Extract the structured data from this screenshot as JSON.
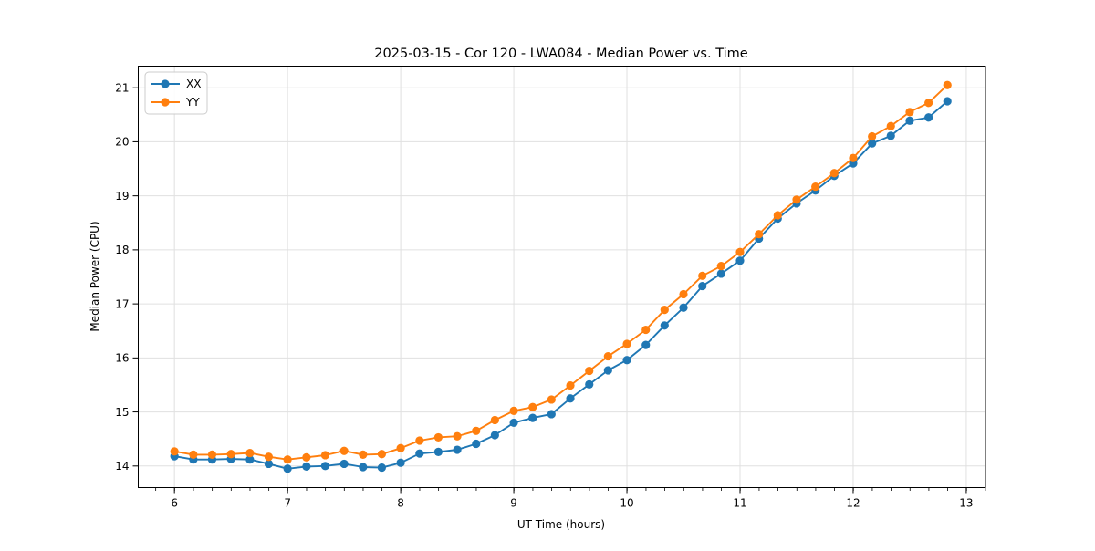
{
  "window": {
    "background_color": "#ffffff"
  },
  "chart_data": {
    "type": "line",
    "title": "2025-03-15 - Cor 120 - LWA084 - Median Power vs. Time",
    "xlabel": "UT Time (hours)",
    "ylabel": "Median Power (CPU)",
    "xlim": [
      5.68,
      13.17
    ],
    "ylim": [
      13.6,
      21.4
    ],
    "xticks": [
      6,
      7,
      8,
      9,
      10,
      11,
      12,
      13
    ],
    "yticks": [
      14,
      15,
      16,
      17,
      18,
      19,
      20,
      21
    ],
    "minor_xtick_step": 0.1667,
    "grid": true,
    "grid_color": "#e0e0e0",
    "spine_color": "#000000",
    "legend_position": "upper-left",
    "marker": "circle",
    "x": [
      6.0,
      6.167,
      6.333,
      6.5,
      6.667,
      6.833,
      7.0,
      7.167,
      7.333,
      7.5,
      7.667,
      7.833,
      8.0,
      8.167,
      8.333,
      8.5,
      8.667,
      8.833,
      9.0,
      9.167,
      9.333,
      9.5,
      9.667,
      9.833,
      10.0,
      10.167,
      10.333,
      10.5,
      10.667,
      10.833,
      11.0,
      11.167,
      11.333,
      11.5,
      11.667,
      11.833,
      12.0,
      12.167,
      12.333,
      12.5,
      12.667,
      12.833
    ],
    "series": [
      {
        "name": "XX",
        "color": "#1f77b4",
        "values": [
          14.18,
          14.12,
          14.12,
          14.13,
          14.12,
          14.04,
          13.95,
          13.99,
          14.0,
          14.04,
          13.98,
          13.97,
          14.06,
          14.23,
          14.26,
          14.3,
          14.41,
          14.57,
          14.8,
          14.89,
          14.96,
          15.25,
          15.51,
          15.77,
          15.96,
          16.24,
          16.6,
          16.93,
          17.33,
          17.56,
          17.8,
          18.21,
          18.58,
          18.86,
          19.1,
          19.37,
          19.6,
          19.97,
          20.11,
          20.39,
          20.45,
          20.75
        ]
      },
      {
        "name": "YY",
        "color": "#ff7f0e",
        "values": [
          14.27,
          14.21,
          14.21,
          14.22,
          14.24,
          14.17,
          14.12,
          14.16,
          14.2,
          14.28,
          14.21,
          14.22,
          14.33,
          14.47,
          14.53,
          14.55,
          14.65,
          14.85,
          15.02,
          15.09,
          15.23,
          15.49,
          15.76,
          16.03,
          16.26,
          16.52,
          16.89,
          17.18,
          17.52,
          17.7,
          17.96,
          18.29,
          18.64,
          18.93,
          19.17,
          19.42,
          19.7,
          20.1,
          20.29,
          20.55,
          20.72,
          21.05
        ]
      }
    ]
  }
}
